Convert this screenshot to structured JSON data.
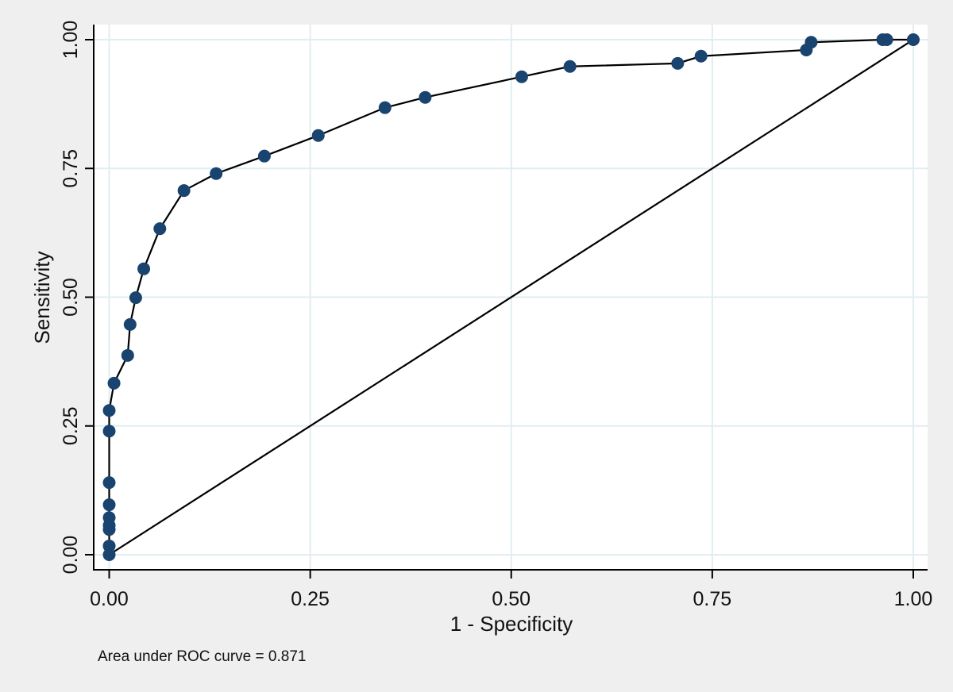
{
  "chart_data": {
    "type": "line",
    "title": "",
    "xlabel": "1 - Specificity",
    "ylabel": "Sensitivity",
    "xlim": [
      0,
      1
    ],
    "ylim": [
      0,
      1
    ],
    "xticks": [
      "0.00",
      "0.25",
      "0.50",
      "0.75",
      "1.00"
    ],
    "yticks": [
      "0.00",
      "0.25",
      "0.50",
      "0.75",
      "1.00"
    ],
    "grid": true,
    "legend": null,
    "note": "Area under ROC curve = 0.871",
    "series": [
      {
        "name": "ROC curve",
        "marker": "circle",
        "color": "#1a4470",
        "x": [
          0,
          0,
          0,
          0,
          0,
          0,
          0,
          0,
          0,
          0.006,
          0.023,
          0.026,
          0.033,
          0.043,
          0.063,
          0.093,
          0.133,
          0.193,
          0.26,
          0.343,
          0.393,
          0.513,
          0.573,
          0.707,
          0.736,
          0.867,
          0.873,
          0.962,
          0.967,
          1.0
        ],
        "y": [
          0,
          0.017,
          0.049,
          0.057,
          0.072,
          0.097,
          0.14,
          0.24,
          0.28,
          0.333,
          0.387,
          0.447,
          0.499,
          0.555,
          0.633,
          0.707,
          0.74,
          0.774,
          0.814,
          0.868,
          0.888,
          0.928,
          0.948,
          0.954,
          0.968,
          0.98,
          0.995,
          1.0,
          1.0,
          1.0
        ]
      },
      {
        "name": "Reference line",
        "marker": "none",
        "color": "#000000",
        "x": [
          0,
          1
        ],
        "y": [
          0,
          1
        ]
      }
    ]
  },
  "colors": {
    "background": "#efefef",
    "plot_bg": "#ffffff",
    "grid": "#e1edf1",
    "marker": "#1a4470",
    "line": "#000000"
  }
}
